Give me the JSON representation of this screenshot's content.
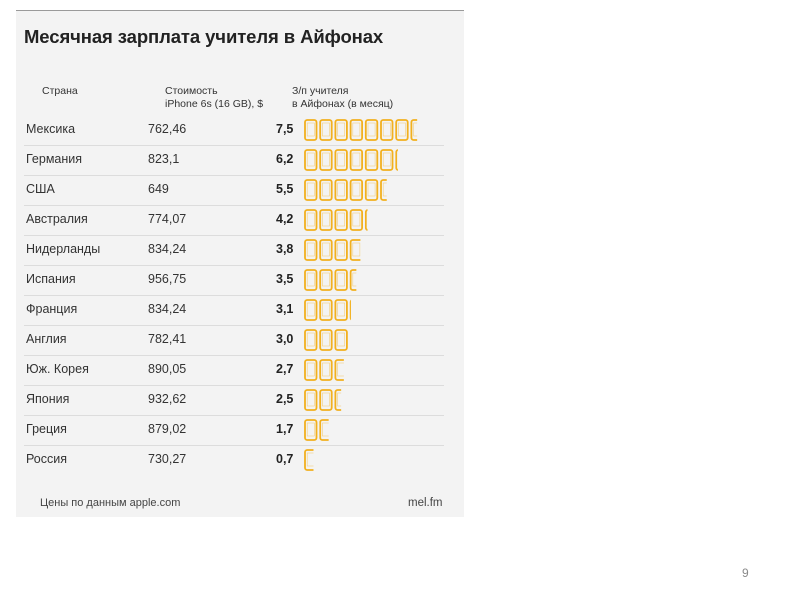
{
  "chart_data": {
    "type": "table",
    "title": "Месячная зарплата учителя в Айфонах",
    "columns": [
      "Страна",
      "Стоимость\niPhone 6s (16 GB), $",
      "З/п учителя\nв Айфонах (в месяц)"
    ],
    "rows": [
      {
        "country": "Мексика",
        "price": "762,46",
        "ratio": "7,5",
        "value": 7.5
      },
      {
        "country": "Германия",
        "price": "823,1",
        "ratio": "6,2",
        "value": 6.2
      },
      {
        "country": "США",
        "price": "649",
        "ratio": "5,5",
        "value": 5.5
      },
      {
        "country": "Австралия",
        "price": "774,07",
        "ratio": "4,2",
        "value": 4.2
      },
      {
        "country": "Нидерланды",
        "price": "834,24",
        "ratio": "3,8",
        "value": 3.8
      },
      {
        "country": "Испания",
        "price": "956,75",
        "ratio": "3,5",
        "value": 3.5
      },
      {
        "country": "Франция",
        "price": "834,24",
        "ratio": "3,1",
        "value": 3.1
      },
      {
        "country": "Англия",
        "price": "782,41",
        "ratio": "3,0",
        "value": 3.0
      },
      {
        "country": "Юж. Корея",
        "price": "890,05",
        "ratio": "2,7",
        "value": 2.7
      },
      {
        "country": "Япония",
        "price": "932,62",
        "ratio": "2,5",
        "value": 2.5
      },
      {
        "country": "Греция",
        "price": "879,02",
        "ratio": "1,7",
        "value": 1.7
      },
      {
        "country": "Россия",
        "price": "730,27",
        "ratio": "0,7",
        "value": 0.7
      }
    ],
    "source_note": "Цены по данным apple.com",
    "brand": "mel.fm",
    "icon": "iphone-icon",
    "icon_color": "#f2b01e"
  },
  "slide": {
    "page_number": "9"
  }
}
